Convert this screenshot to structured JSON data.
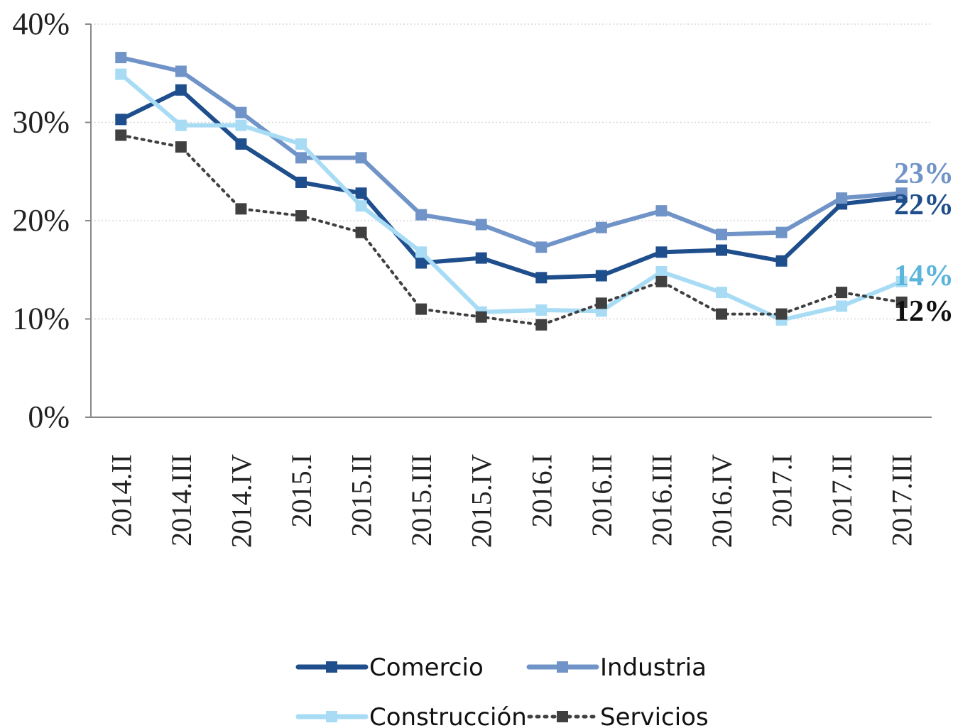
{
  "chart_data": {
    "type": "line",
    "categories": [
      "2014.II",
      "2014.III",
      "2014.IV",
      "2015.I",
      "2015.II",
      "2015.III",
      "2015.IV",
      "2016.I",
      "2016.II",
      "2016.III",
      "2016.IV",
      "2017.I",
      "2017.II",
      "2017.III"
    ],
    "series": [
      {
        "name": "Comercio",
        "color": "#1f4e8c",
        "dashed": false,
        "values": [
          30.3,
          33.3,
          27.8,
          23.9,
          22.8,
          15.7,
          16.2,
          14.2,
          14.4,
          16.8,
          17.0,
          15.9,
          21.7,
          22.4
        ]
      },
      {
        "name": "Industria",
        "color": "#7094c8",
        "dashed": false,
        "values": [
          36.6,
          35.2,
          31.0,
          26.4,
          26.4,
          20.6,
          19.6,
          17.3,
          19.3,
          21.0,
          18.6,
          18.8,
          22.3,
          22.8
        ]
      },
      {
        "name": "Construcción",
        "color": "#a8dcf5",
        "dashed": false,
        "values": [
          34.9,
          29.7,
          29.7,
          27.8,
          21.5,
          16.8,
          10.7,
          10.9,
          10.8,
          14.8,
          12.7,
          9.9,
          11.3,
          13.8
        ]
      },
      {
        "name": "Servicios",
        "color": "#404040",
        "dashed": true,
        "values": [
          28.7,
          27.5,
          21.2,
          20.5,
          18.8,
          11.0,
          10.2,
          9.4,
          11.6,
          13.8,
          10.5,
          10.5,
          12.7,
          11.7
        ]
      }
    ],
    "annotations": [
      {
        "text": "23%",
        "color": "#7094c8"
      },
      {
        "text": "22%",
        "color": "#1f4e8c"
      },
      {
        "text": "14%",
        "color": "#5ab4dc"
      },
      {
        "text": "12%",
        "color": "#111111"
      }
    ],
    "ylim": [
      0,
      40
    ],
    "yticks": [
      {
        "value": 0,
        "label": "0%"
      },
      {
        "value": 10,
        "label": "10%"
      },
      {
        "value": 20,
        "label": "20%"
      },
      {
        "value": 30,
        "label": "30%"
      },
      {
        "value": 40,
        "label": "40%"
      }
    ],
    "grid": true,
    "legend": "bottom"
  }
}
